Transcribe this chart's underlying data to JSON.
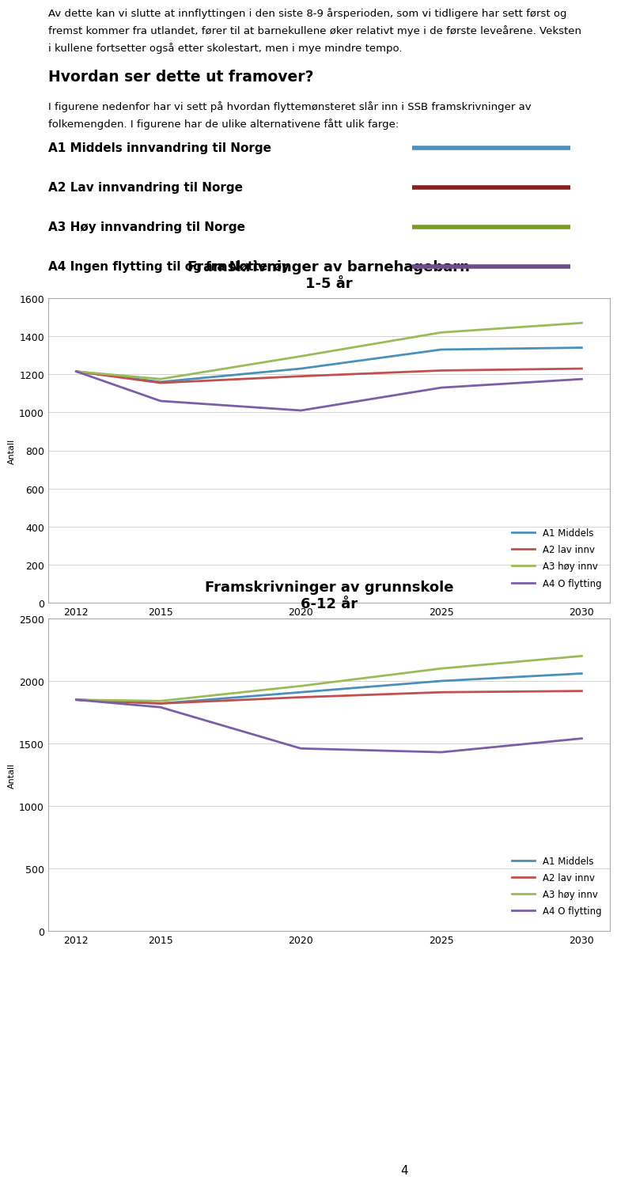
{
  "header_text": "Av dette kan vi slutte at innflyttingen i den siste 8-9 årsperioden, som vi tidligere har sett først og\nfremst kommer fra utlandet, fører til at barnekullene øker relativt mye i de første leveårene. Veksten\ni kullene fortsetter også etter skolestart, men i mye mindre tempo.",
  "section_title": "Hvordan ser dette ut framover?",
  "section_body": "I figurene nedenfor har vi sett på hvordan flyttemønsteret slår inn i SSB framskrivninger av\nfolkemengden. I figurene har de ulike alternativene fått ulik farge:",
  "legend_items": [
    {
      "label": "A1 Middels innvandring til Norge",
      "color": "#4A90B8"
    },
    {
      "label": "A2 Lav innvandring til Norge",
      "color": "#8B2020"
    },
    {
      "label": "A3 Høy innvandring til Norge",
      "color": "#7A9A2A"
    },
    {
      "label": "A4 Ingen flytting til og fra Nøtterøy",
      "color": "#6B4E8A"
    }
  ],
  "chart1": {
    "title": "Framskrivninger av barnehagebarn\n1-5 år",
    "years": [
      2012,
      2015,
      2020,
      2025,
      2030
    ],
    "series": {
      "A1 Middels": [
        1215,
        1160,
        1230,
        1330,
        1340
      ],
      "A2 lav innv": [
        1215,
        1155,
        1190,
        1220,
        1230
      ],
      "A3 høy innv": [
        1215,
        1175,
        1295,
        1420,
        1470
      ],
      "A4 O flytting": [
        1215,
        1060,
        1010,
        1130,
        1175
      ]
    },
    "colors": {
      "A1 Middels": "#4A90B8",
      "A2 lav innv": "#C0504D",
      "A3 høy innv": "#9BBB59",
      "A4 O flytting": "#7B5EA7"
    },
    "ylim": [
      0,
      1600
    ],
    "yticks": [
      0,
      200,
      400,
      600,
      800,
      1000,
      1200,
      1400,
      1600
    ]
  },
  "chart2": {
    "title": "Framskrivninger av grunnskole\n6-12 år",
    "years": [
      2012,
      2015,
      2020,
      2025,
      2030
    ],
    "series": {
      "A1 Middels": [
        1850,
        1820,
        1910,
        2000,
        2060
      ],
      "A2 lav innv": [
        1850,
        1820,
        1870,
        1910,
        1920
      ],
      "A3 høy innv": [
        1850,
        1840,
        1960,
        2100,
        2200
      ],
      "A4 O flytting": [
        1850,
        1790,
        1460,
        1430,
        1540
      ]
    },
    "colors": {
      "A1 Middels": "#4A90B8",
      "A2 lav innv": "#C0504D",
      "A3 høy innv": "#9BBB59",
      "A4 O flytting": "#7B5EA7"
    },
    "ylim": [
      0,
      2500
    ],
    "yticks": [
      0,
      500,
      1000,
      1500,
      2000,
      2500
    ]
  },
  "bg_color": "#FFFFFF",
  "chart_bg": "#FFFFFF",
  "chart_border": "#AAAAAA",
  "grid_color": "#CCCCCC",
  "page_number": "4"
}
